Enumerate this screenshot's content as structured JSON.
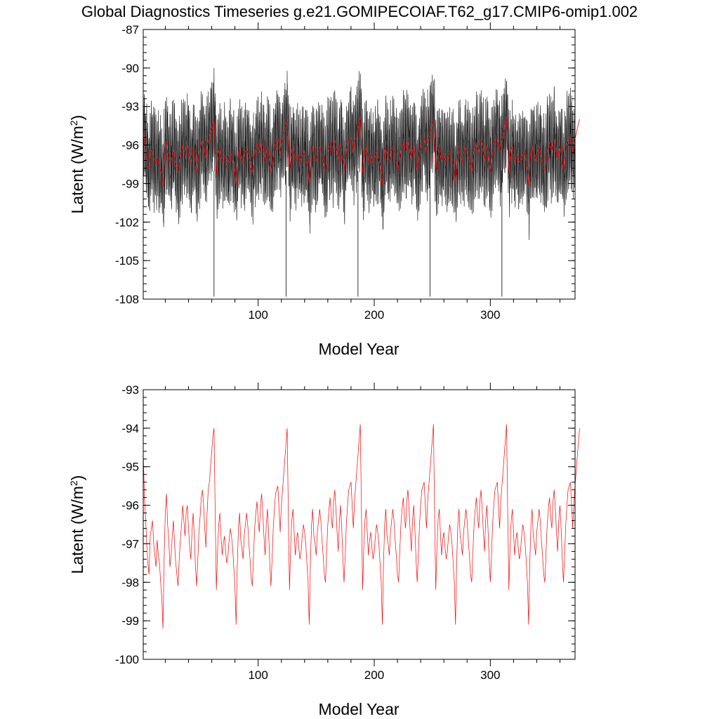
{
  "figure": {
    "title": "Global Diagnostics Timeseries g.e21.GOMIPECOIAF.T62_g17.CMIP6-omip1.002"
  },
  "chart_data": [
    {
      "type": "line",
      "xlabel": "Model Year",
      "ylabel": "Latent (W/m",
      "ylabel_sup": "2",
      "ylabel_close": ")",
      "xlim": [
        1,
        373
      ],
      "ylim": [
        -108,
        -87
      ],
      "xticks": [
        100,
        200,
        300
      ],
      "yticks": [
        -108,
        -105,
        -102,
        -99,
        -96,
        -93,
        -90,
        -87
      ],
      "grid": false,
      "series": [
        {
          "color": "#000000",
          "resolution": "monthly",
          "values": "monthly values oscillating around the annual mean, min -107.8, max -89.1 (seasonal cycle amplitude about ±3 W/m2)",
          "min": -107.8,
          "max": -89.1
        },
        {
          "color": "#ff0000",
          "resolution": "annual",
          "x_start": 1,
          "values": [
            -94.6,
            -95.8,
            -96.3,
            -97.0,
            -97.5,
            -97.8,
            -96.8,
            -96.6,
            -96.4,
            -97.0,
            -97.3,
            -97.6,
            -96.9,
            -97.3,
            -97.5,
            -98.0,
            -98.4,
            -99.2,
            -97.4,
            -96.2,
            -95.7,
            -96.5,
            -96.9,
            -97.6,
            -97.3,
            -96.8,
            -96.4,
            -97.0,
            -97.5,
            -97.8,
            -98.1,
            -97.4,
            -96.9,
            -96.5,
            -96.0,
            -96.4,
            -96.8,
            -96.2,
            -96.0,
            -96.6,
            -97.1,
            -97.4,
            -96.7,
            -96.2,
            -96.8,
            -97.6,
            -98.1,
            -97.4,
            -96.7,
            -96.3,
            -95.8,
            -95.6,
            -96.0,
            -96.6,
            -97.1,
            -96.2,
            -95.6,
            -95.4,
            -95.0,
            -94.6,
            -94.2,
            -94.0,
            -96.2,
            -98.2,
            -97.2,
            -96.5,
            -96.2,
            -96.8,
            -97.3,
            -97.0,
            -96.8,
            -97.2,
            -97.5,
            -97.3,
            -96.9,
            -96.6,
            -96.8,
            -97.1,
            -97.6,
            -98.1,
            -99.1,
            -97.6,
            -96.6,
            -96.2,
            -96.9,
            -97.1,
            -97.4,
            -96.8,
            -96.5,
            -96.2,
            -96.5,
            -97.0,
            -97.4,
            -97.9,
            -98.1,
            -97.3,
            -96.6,
            -96.2,
            -95.9,
            -96.4,
            -96.7,
            -96.0,
            -95.7,
            -96.2,
            -96.8,
            -97.3,
            -96.5,
            -96.1,
            -96.7,
            -97.5,
            -98.1,
            -97.4,
            -96.6,
            -96.1,
            -95.7,
            -95.6,
            -95.5,
            -96.1,
            -96.7,
            -96.0,
            -95.6,
            -95.2,
            -94.8,
            -94.4,
            -94.0,
            -96.2,
            -98.2,
            -97.1,
            -96.4,
            -96.1,
            -96.7,
            -97.3,
            -96.9,
            -96.7,
            -97.1,
            -97.4,
            -97.2,
            -96.8,
            -96.5,
            -96.7,
            -97.0,
            -97.5,
            -98.0,
            -99.1,
            -97.5,
            -96.5,
            -96.1,
            -96.8,
            -97.0,
            -97.3,
            -96.7,
            -96.4,
            -96.1,
            -96.4,
            -96.9,
            -97.3,
            -97.8,
            -98.0,
            -97.2,
            -96.5,
            -96.1,
            -95.8,
            -96.3,
            -96.6,
            -95.9,
            -95.6,
            -96.1,
            -96.7,
            -97.2,
            -96.4,
            -96.0,
            -96.6,
            -97.4,
            -98.0,
            -97.3,
            -96.5,
            -96.0,
            -95.6,
            -95.5,
            -95.4,
            -96.0,
            -96.6,
            -95.9,
            -95.5,
            -95.1,
            -94.7,
            -94.3,
            -93.9,
            -96.2,
            -98.2,
            -97.1,
            -96.4,
            -96.1,
            -96.7,
            -97.3,
            -96.9,
            -96.7,
            -97.1,
            -97.4,
            -97.2,
            -96.8,
            -96.5,
            -96.7,
            -97.0,
            -97.5,
            -98.0,
            -99.1,
            -97.5,
            -96.5,
            -96.1,
            -96.8,
            -97.0,
            -97.3,
            -96.7,
            -96.4,
            -96.1,
            -96.4,
            -96.9,
            -97.3,
            -97.8,
            -98.0,
            -97.2,
            -96.5,
            -96.1,
            -95.8,
            -96.3,
            -96.6,
            -95.9,
            -95.6,
            -96.1,
            -96.7,
            -97.2,
            -96.4,
            -96.0,
            -96.6,
            -97.4,
            -98.0,
            -97.3,
            -96.5,
            -96.0,
            -95.6,
            -95.5,
            -95.4,
            -96.0,
            -96.6,
            -95.9,
            -95.5,
            -95.1,
            -94.7,
            -94.3,
            -93.9,
            -96.2,
            -98.2,
            -97.1,
            -96.4,
            -96.1,
            -96.7,
            -97.3,
            -96.9,
            -96.7,
            -97.1,
            -97.4,
            -97.2,
            -96.8,
            -96.5,
            -96.7,
            -97.0,
            -97.5,
            -98.0,
            -99.1,
            -97.5,
            -96.5,
            -96.1,
            -96.8,
            -97.0,
            -97.3,
            -96.7,
            -96.4,
            -96.1,
            -96.4,
            -96.9,
            -97.3,
            -97.8,
            -98.0,
            -97.2,
            -96.5,
            -96.1,
            -95.8,
            -96.3,
            -96.6,
            -95.9,
            -95.6,
            -96.1,
            -96.7,
            -97.2,
            -96.4,
            -96.0,
            -96.6,
            -97.4,
            -98.0,
            -97.3,
            -96.5,
            -96.0,
            -95.6,
            -95.5,
            -95.4,
            -96.0,
            -96.6,
            -95.9,
            -95.5,
            -95.1,
            -94.7,
            -94.3,
            -93.9,
            -96.2,
            -98.2,
            -97.1,
            -96.4,
            -96.1,
            -96.7,
            -97.3,
            -96.9,
            -96.7,
            -97.1,
            -97.4,
            -97.2,
            -96.8,
            -96.5,
            -96.7,
            -97.0,
            -97.5,
            -98.0,
            -99.1,
            -97.5,
            -96.5,
            -96.1,
            -96.8,
            -97.0,
            -97.3,
            -96.7,
            -96.4,
            -96.1,
            -96.4,
            -96.9,
            -97.3,
            -97.8,
            -98.0,
            -97.2,
            -96.5,
            -96.1,
            -95.8,
            -96.3,
            -96.6,
            -95.9,
            -95.6,
            -96.1,
            -96.7,
            -97.2,
            -96.4,
            -96.0,
            -96.6,
            -97.4,
            -98.0,
            -97.3,
            -96.5,
            -96.0,
            -95.6,
            -95.5,
            -95.4,
            -96.0,
            -96.6,
            -95.9,
            -95.5,
            -95.1,
            -94.7,
            -94.3,
            -94.0
          ]
        }
      ]
    },
    {
      "type": "line",
      "xlabel": "Model Year",
      "ylabel": "Latent (W/m",
      "ylabel_sup": "2",
      "ylabel_close": ")",
      "xlim": [
        1,
        373
      ],
      "ylim": [
        -100,
        -93
      ],
      "xticks": [
        100,
        200,
        300
      ],
      "yticks": [
        -100,
        -99,
        -98,
        -97,
        -96,
        -95,
        -94,
        -93
      ],
      "grid": false,
      "series": [
        {
          "color": "#ff0000",
          "resolution": "annual",
          "values_ref": "same annual series as upper panel"
        }
      ]
    }
  ]
}
